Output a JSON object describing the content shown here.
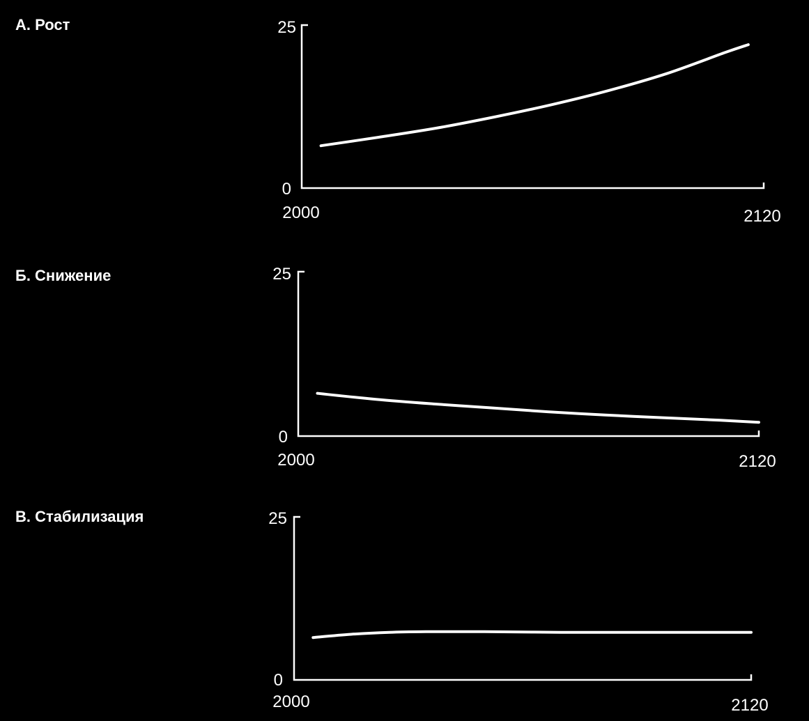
{
  "colors": {
    "background": "#000000",
    "foreground": "#ffffff"
  },
  "chart_data": [
    {
      "type": "line",
      "title": "А. Рост",
      "xlabel": "",
      "ylabel": "",
      "xlim": [
        2000,
        2120
      ],
      "ylim": [
        0,
        25
      ],
      "x_ticks": [
        "2000",
        "2120"
      ],
      "y_ticks": [
        "0",
        "25"
      ],
      "grid": false,
      "series": [
        {
          "x": [
            2005,
            2020,
            2035,
            2050,
            2065,
            2080,
            2095,
            2110,
            2116
          ],
          "values": [
            6.5,
            7.8,
            9.2,
            10.9,
            12.8,
            15.0,
            17.6,
            20.8,
            22.0
          ]
        }
      ]
    },
    {
      "type": "line",
      "title": "Б. Снижение",
      "xlabel": "",
      "ylabel": "",
      "xlim": [
        2000,
        2120
      ],
      "ylim": [
        0,
        25
      ],
      "x_ticks": [
        "2000",
        "2120"
      ],
      "y_ticks": [
        "0",
        "25"
      ],
      "grid": false,
      "series": [
        {
          "x": [
            2005,
            2020,
            2035,
            2050,
            2065,
            2080,
            2095,
            2110,
            2120
          ],
          "values": [
            6.5,
            5.6,
            4.9,
            4.3,
            3.7,
            3.2,
            2.8,
            2.4,
            2.1
          ]
        }
      ]
    },
    {
      "type": "line",
      "title": "В. Стабилизация",
      "xlabel": "",
      "ylabel": "",
      "xlim": [
        2000,
        2120
      ],
      "ylim": [
        0,
        25
      ],
      "x_ticks": [
        "2000",
        "2120"
      ],
      "y_ticks": [
        "0",
        "25"
      ],
      "grid": false,
      "series": [
        {
          "x": [
            2005,
            2015,
            2025,
            2035,
            2050,
            2070,
            2090,
            2110,
            2120
          ],
          "values": [
            6.5,
            7.0,
            7.3,
            7.4,
            7.4,
            7.3,
            7.3,
            7.3,
            7.3
          ]
        }
      ]
    }
  ]
}
